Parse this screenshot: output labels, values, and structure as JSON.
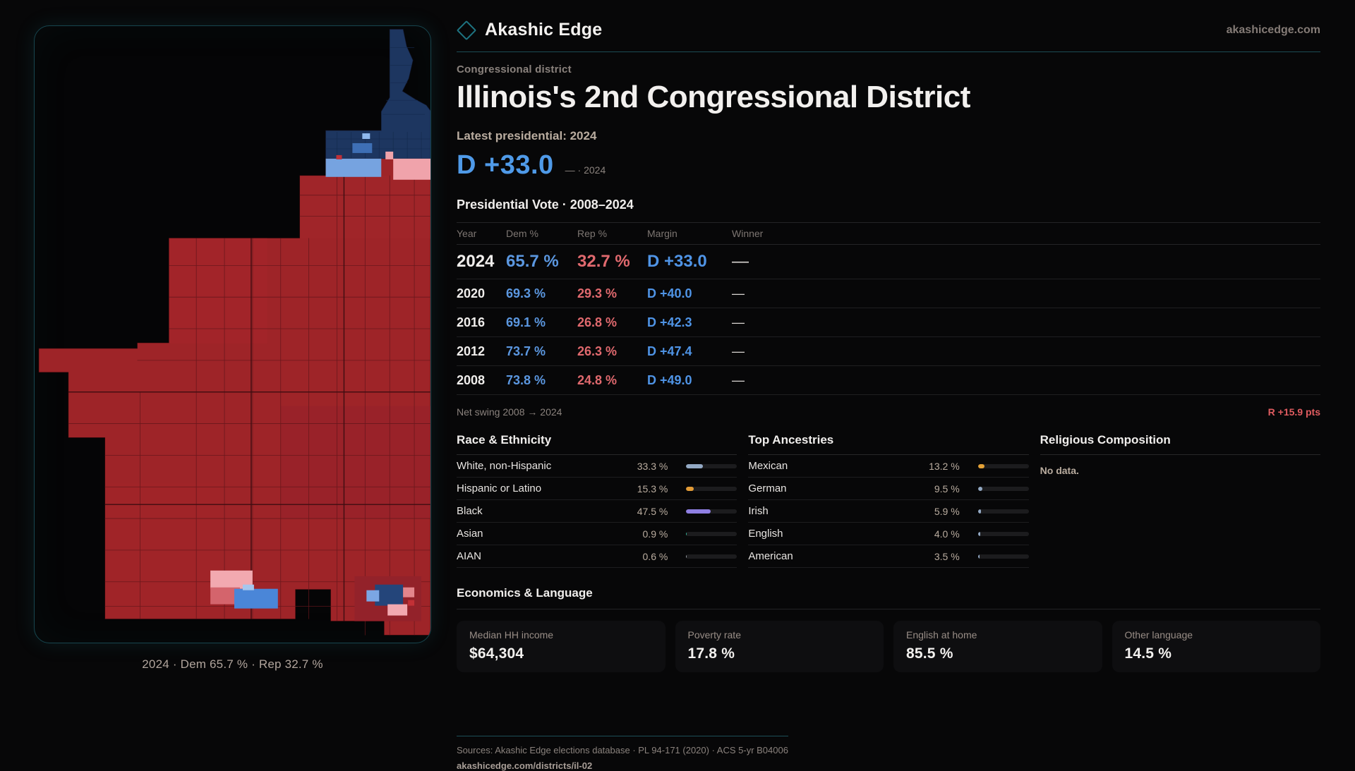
{
  "site": {
    "brand": "Akashic Edge",
    "domain": "akashicedge.com"
  },
  "colors": {
    "accent_teal": "#1e7482",
    "dem_blue": "#4f9ae8",
    "rep_red": "#e0696e",
    "map_rep_fill": "#9e2428",
    "map_dem_fill": "#1d3660"
  },
  "map_panel": {
    "caption": "2024 · Dem 65.7 % · Rep 32.7 %"
  },
  "header": {
    "kicker": "Congressional district",
    "title": "Illinois's 2nd Congressional District",
    "latest_label": "Latest presidential: 2024",
    "margin_big": "D +33.0",
    "margin_note": "— · 2024"
  },
  "vote_table": {
    "title": "Presidential Vote · 2008–2024",
    "columns": [
      "Year",
      "Dem %",
      "Rep %",
      "Margin",
      "Winner"
    ],
    "rows": [
      {
        "year": "2024",
        "dem": "65.7 %",
        "rep": "32.7 %",
        "margin": "D +33.0",
        "winner": "—"
      },
      {
        "year": "2020",
        "dem": "69.3 %",
        "rep": "29.3 %",
        "margin": "D +40.0",
        "winner": "—"
      },
      {
        "year": "2016",
        "dem": "69.1 %",
        "rep": "26.8 %",
        "margin": "D +42.3",
        "winner": "—"
      },
      {
        "year": "2012",
        "dem": "73.7 %",
        "rep": "26.3 %",
        "margin": "D +47.4",
        "winner": "—"
      },
      {
        "year": "2008",
        "dem": "73.8 %",
        "rep": "24.8 %",
        "margin": "D +49.0",
        "winner": "—"
      }
    ]
  },
  "net_swing": {
    "label": "Net swing 2008 → 2024",
    "value": "R +15.9 pts"
  },
  "demographics": {
    "race": {
      "title": "Race & Ethnicity",
      "rows": [
        {
          "label": "White, non-Hispanic",
          "value": "33.3 %",
          "pct": 33.3,
          "color": "#93a9c4"
        },
        {
          "label": "Hispanic or Latino",
          "value": "15.3 %",
          "pct": 15.3,
          "color": "#e39b36"
        },
        {
          "label": "Black",
          "value": "47.5 %",
          "pct": 47.5,
          "color": "#8f7fe3"
        },
        {
          "label": "Asian",
          "value": "0.9 %",
          "pct": 0.9,
          "color": "#35b89a"
        },
        {
          "label": "AIAN",
          "value": "0.6 %",
          "pct": 0.6,
          "color": "#9aa0a6"
        }
      ]
    },
    "ancestries": {
      "title": "Top Ancestries",
      "rows": [
        {
          "label": "Mexican",
          "value": "13.2 %",
          "pct": 13.2,
          "color": "#e3a136"
        },
        {
          "label": "German",
          "value": "9.5 %",
          "pct": 9.5,
          "color": "#93a9c4"
        },
        {
          "label": "Irish",
          "value": "5.9 %",
          "pct": 5.9,
          "color": "#93a9c4"
        },
        {
          "label": "English",
          "value": "4.0 %",
          "pct": 4.0,
          "color": "#93a9c4"
        },
        {
          "label": "American",
          "value": "3.5 %",
          "pct": 3.5,
          "color": "#93a9c4"
        }
      ]
    },
    "religion": {
      "title": "Religious Composition",
      "empty": "No data."
    }
  },
  "economics": {
    "title": "Economics & Language",
    "cards": [
      {
        "label": "Median HH income",
        "value": "$64,304"
      },
      {
        "label": "Poverty rate",
        "value": "17.8 %"
      },
      {
        "label": "English at home",
        "value": "85.5 %"
      },
      {
        "label": "Other language",
        "value": "14.5 %"
      }
    ]
  },
  "footer": {
    "sources": "Sources: Akashic Edge elections database · PL 94-171 (2020) · ACS 5-yr B04006",
    "permalink": "akashicedge.com/districts/il-02"
  }
}
